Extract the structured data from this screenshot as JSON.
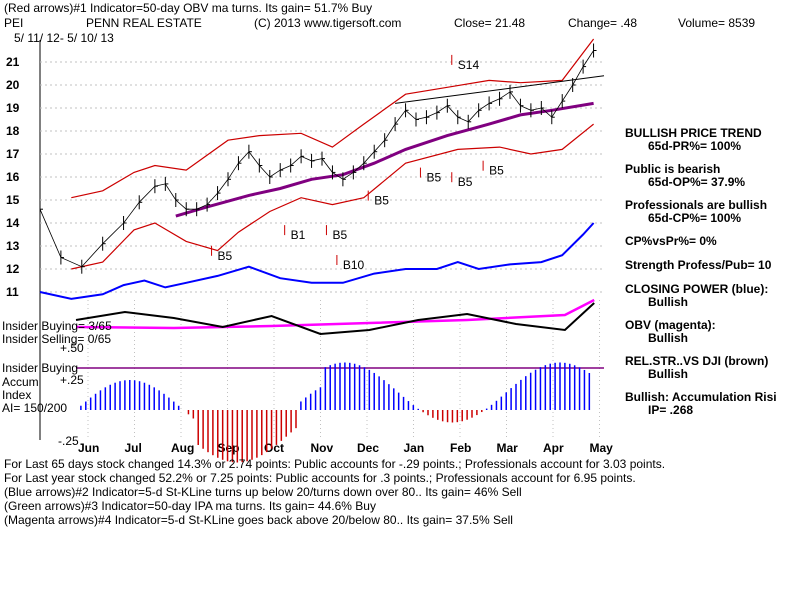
{
  "header": {
    "line1": "(Red arrows)#1 Indicator=50-day OBV ma turns. Its gain= 51.7% Buy",
    "ticker": "PEI",
    "company": "PENN REAL ESTATE",
    "copyright": "(C) 2013 www.tigersoft.com",
    "close": "Close=  21.48",
    "change": "Change= .48",
    "volume": "Volume= 8539",
    "date_range": "5/ 11/ 12- 5/ 10/ 13"
  },
  "side_panel": [
    {
      "label": "BULLISH PRICE TREND",
      "value": "65d-PR%= 100%"
    },
    {
      "label": "Public is bearish",
      "value": "65d-OP%= 37.9%"
    },
    {
      "label": "Professionals are bullish",
      "value": "65d-CP%= 100%"
    },
    {
      "label": "CP%vsPr%=  0%",
      "value": ""
    },
    {
      "label": "Strength Profess/Pub= 10",
      "value": ""
    },
    {
      "label": "CLOSING POWER (blue):",
      "value": "Bullish"
    },
    {
      "label": "OBV (magenta):",
      "value": "Bullish"
    },
    {
      "label": "REL.STR..VS DJI (brown)",
      "value": "Bullish"
    },
    {
      "label": "Bullish: Accumulation Risi",
      "value": "IP=  .268"
    }
  ],
  "indicator_labels": {
    "insider_buying": "Insider Buying= 3/65",
    "insider_selling": "Insider Selling= 0/65",
    "insider_buying_2": "Insider Buying",
    "accum1": "Accum",
    "accum2": "Index",
    "ai": "AI= 150/200",
    "tick_p50": "+.50",
    "tick_p25": "+.25",
    "tick_m25": "-.25"
  },
  "footer": [
    "For Last 65 days stock changed  14.3% or  2.74 points:  Public accounts for -.29 points.;  Professionals account for  3.03 points.",
    "For Last year stock changed  52.2% or  7.25 points:  Public accounts for .3 points.;  Professionals account for  6.95 points.",
    "(Blue arrows)#2 Indicator=5-d St-KLine turns up below 20/turns down over 80.. Its gain= 46% Sell",
    "(Green arrows)#3 Indicator=50-day IPA ma turns. Its gain= 44.6% Buy",
    "(Magenta arrows)#4 Indicator=5-d St-KLine goes back above 20/below 80.. Its gain= 37.5% Sell"
  ],
  "colors": {
    "price": "#000000",
    "band": "#cc0000",
    "ma": "#800080",
    "closing_power": "#0000ff",
    "obv": "#ff00ff",
    "rel_strength": "#000000",
    "accum_pos": "#0000ff",
    "accum_neg": "#cc0000",
    "insider_line": "#800080",
    "grid": "#c0c0c0"
  },
  "chart_data": {
    "type": "line",
    "title": "PEI PENN REAL ESTATE",
    "x_labels": [
      "Jun",
      "Jul",
      "Aug",
      "Sep",
      "Oct",
      "Nov",
      "Dec",
      "Jan",
      "Feb",
      "Mar",
      "Apr",
      "May"
    ],
    "ylim": [
      10.5,
      22
    ],
    "y_ticks": [
      11,
      12,
      13,
      14,
      15,
      16,
      17,
      18,
      19,
      20,
      21
    ],
    "price_series": [
      [
        0,
        14.6
      ],
      [
        4,
        12.5
      ],
      [
        8,
        12.1
      ],
      [
        12,
        13.1
      ],
      [
        16,
        14.0
      ],
      [
        19,
        14.9
      ],
      [
        22,
        15.6
      ],
      [
        24,
        15.7
      ],
      [
        26,
        15.0
      ],
      [
        28,
        14.6
      ],
      [
        30,
        14.6
      ],
      [
        32,
        14.8
      ],
      [
        34,
        15.3
      ],
      [
        36,
        15.9
      ],
      [
        38,
        16.6
      ],
      [
        40,
        17.1
      ],
      [
        42,
        16.5
      ],
      [
        44,
        16.0
      ],
      [
        46,
        16.3
      ],
      [
        48,
        16.5
      ],
      [
        50,
        16.9
      ],
      [
        52,
        16.7
      ],
      [
        54,
        16.8
      ],
      [
        56,
        16.2
      ],
      [
        58,
        15.9
      ],
      [
        60,
        16.2
      ],
      [
        62,
        16.6
      ],
      [
        64,
        17.1
      ],
      [
        66,
        17.6
      ],
      [
        68,
        18.3
      ],
      [
        70,
        18.9
      ],
      [
        72,
        18.5
      ],
      [
        74,
        18.6
      ],
      [
        76,
        18.8
      ],
      [
        78,
        19.1
      ],
      [
        80,
        18.6
      ],
      [
        82,
        18.4
      ],
      [
        84,
        18.9
      ],
      [
        86,
        19.2
      ],
      [
        88,
        19.4
      ],
      [
        90,
        19.7
      ],
      [
        92,
        19.1
      ],
      [
        94,
        18.9
      ],
      [
        96,
        19.0
      ],
      [
        98,
        18.6
      ],
      [
        100,
        19.3
      ],
      [
        102,
        20.0
      ],
      [
        104,
        20.8
      ],
      [
        106,
        21.5
      ]
    ],
    "upper_band": [
      [
        6,
        15.1
      ],
      [
        12,
        15.4
      ],
      [
        18,
        16.2
      ],
      [
        22,
        16.5
      ],
      [
        28,
        16.3
      ],
      [
        36,
        17.6
      ],
      [
        42,
        17.8
      ],
      [
        50,
        17.9
      ],
      [
        56,
        17.3
      ],
      [
        62,
        18.3
      ],
      [
        70,
        19.6
      ],
      [
        78,
        19.9
      ],
      [
        86,
        20.2
      ],
      [
        92,
        20.1
      ],
      [
        100,
        20.2
      ],
      [
        106,
        22.0
      ]
    ],
    "lower_band": [
      [
        6,
        12.0
      ],
      [
        12,
        12.3
      ],
      [
        18,
        13.7
      ],
      [
        22,
        14.0
      ],
      [
        28,
        13.2
      ],
      [
        34,
        12.8
      ],
      [
        38,
        13.6
      ],
      [
        44,
        14.5
      ],
      [
        50,
        15.1
      ],
      [
        56,
        14.8
      ],
      [
        62,
        15.1
      ],
      [
        70,
        16.6
      ],
      [
        80,
        17.2
      ],
      [
        88,
        17.3
      ],
      [
        94,
        17.0
      ],
      [
        100,
        17.2
      ],
      [
        106,
        18.3
      ]
    ],
    "ma_series": [
      [
        26,
        14.3
      ],
      [
        32,
        14.7
      ],
      [
        40,
        15.2
      ],
      [
        46,
        15.5
      ],
      [
        52,
        15.9
      ],
      [
        58,
        16.1
      ],
      [
        64,
        16.6
      ],
      [
        70,
        17.2
      ],
      [
        78,
        17.8
      ],
      [
        86,
        18.3
      ],
      [
        92,
        18.7
      ],
      [
        98,
        18.9
      ],
      [
        106,
        19.2
      ]
    ],
    "trendline": [
      [
        68,
        19.2
      ],
      [
        108,
        20.4
      ]
    ],
    "closing_power_series": [
      [
        0,
        11.0
      ],
      [
        6,
        10.7
      ],
      [
        12,
        10.9
      ],
      [
        16,
        11.3
      ],
      [
        20,
        11.5
      ],
      [
        24,
        11.2
      ],
      [
        28,
        11.4
      ],
      [
        34,
        11.7
      ],
      [
        40,
        12.1
      ],
      [
        46,
        11.6
      ],
      [
        52,
        11.4
      ],
      [
        58,
        11.4
      ],
      [
        64,
        11.8
      ],
      [
        70,
        12.0
      ],
      [
        76,
        12.0
      ],
      [
        80,
        12.3
      ],
      [
        84,
        12.0
      ],
      [
        90,
        12.2
      ],
      [
        96,
        12.3
      ],
      [
        100,
        12.6
      ],
      [
        104,
        13.5
      ],
      [
        106,
        14.0
      ]
    ],
    "signals": [
      {
        "label": "S14",
        "x": 80,
        "y": 20.7
      },
      {
        "label": "B1",
        "x": 48,
        "y": 13.3
      },
      {
        "label": "B5",
        "x": 56,
        "y": 13.3
      },
      {
        "label": "B5",
        "x": 34,
        "y": 12.4
      },
      {
        "label": "B5",
        "x": 64,
        "y": 14.8
      },
      {
        "label": "B5",
        "x": 74,
        "y": 15.8
      },
      {
        "label": "B5",
        "x": 80,
        "y": 15.6
      },
      {
        "label": "B5",
        "x": 86,
        "y": 16.1
      },
      {
        "label": "B10",
        "x": 58,
        "y": 12.0
      }
    ]
  }
}
